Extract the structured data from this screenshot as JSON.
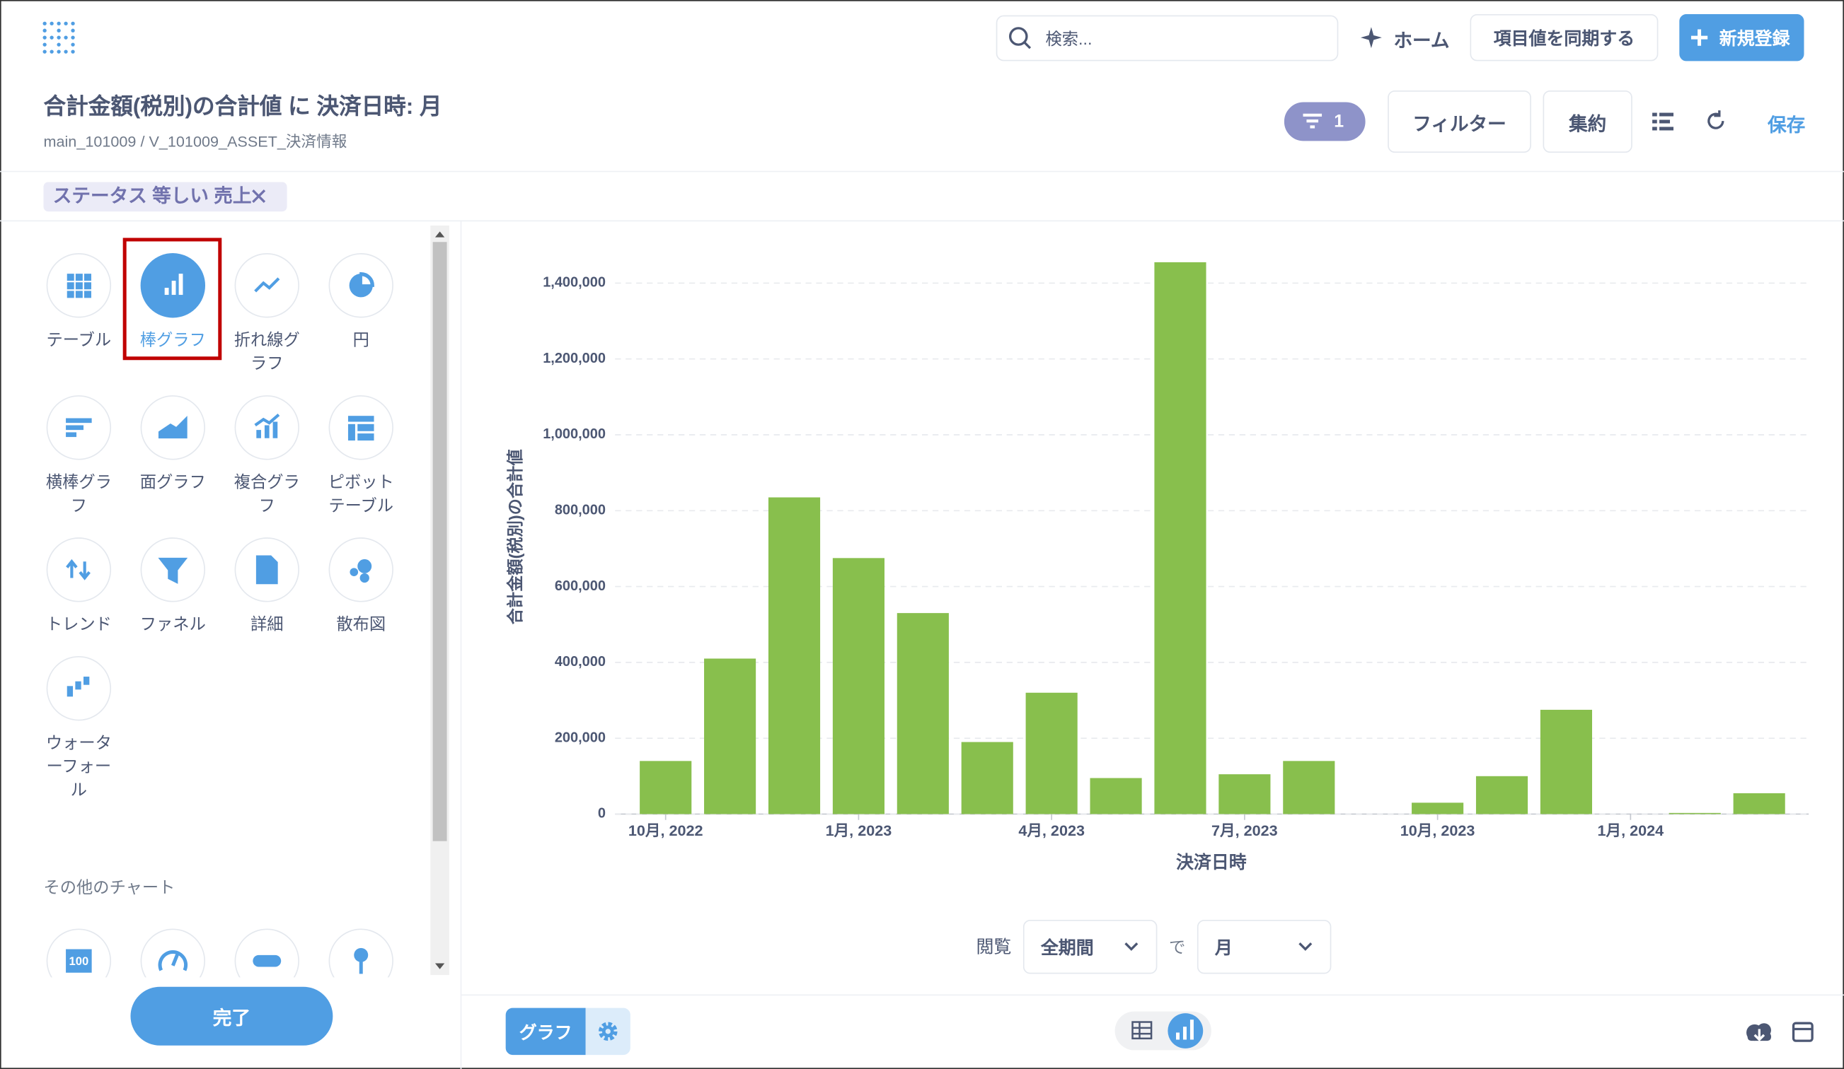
{
  "header": {
    "search": "検索...",
    "home": "ホーム",
    "sync": "項目値を同期する",
    "new": "新規登録"
  },
  "question": {
    "title": "合計金額(税別)の合計値 に 決済日時: 月",
    "breadcrumb": [
      "main_101009",
      "V_101009_ASSET_決済情報"
    ],
    "filter_count": 1,
    "filter": "フィルター",
    "summarize": "集約",
    "save": "保存"
  },
  "filters": [
    "ステータス 等しい 売上"
  ],
  "sidebar": {
    "chart_types": [
      "テーブル",
      "棒グラフ",
      "折れ線グラフ",
      "円",
      "横棒グラフ",
      "面グラフ",
      "複合グラフ",
      "ピボットテーブル",
      "トレンド",
      "ファネル",
      "詳細",
      "散布図",
      "ウォーターフォール"
    ],
    "other_heading": "その他のチャート",
    "other_icon_text": "100",
    "done": "完了"
  },
  "chart_data": {
    "type": "bar",
    "y_label": "合計金額(税別)の合計値",
    "x_label": "決済日時",
    "color": "#88bf4d",
    "categories": [
      "10月, 2022",
      null,
      null,
      "1月, 2023",
      null,
      null,
      "4月, 2023",
      null,
      null,
      "7月, 2023",
      null,
      null,
      "10月, 2023",
      null,
      null,
      "1月, 2024",
      null,
      null
    ],
    "values": [
      140000,
      410000,
      835000,
      675000,
      530000,
      190000,
      320000,
      95000,
      1455000,
      105000,
      140000,
      null,
      30000,
      100000,
      275000,
      null,
      3000,
      55000
    ],
    "ylim": [
      0,
      1500000
    ],
    "yticks": [
      0,
      {
        "value": 200000,
        "label": "200,000"
      },
      {
        "value": 400000,
        "label": "400,000"
      },
      {
        "value": 600000,
        "label": "600,000"
      },
      {
        "value": 800000,
        "label": "800,000"
      },
      {
        "value": 1000000,
        "label": "1,000,000"
      },
      {
        "value": 1200000,
        "label": "1,200,000"
      },
      {
        "value": 1400000,
        "label": "1,400,000"
      }
    ],
    "grid": true
  },
  "footer": {
    "view": "閲覧",
    "period": "全期間",
    "by": "で",
    "unit": "月",
    "display": "グラフ"
  }
}
